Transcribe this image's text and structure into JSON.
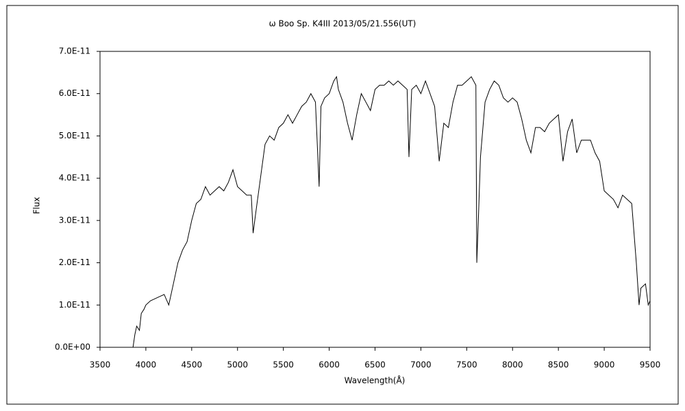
{
  "chart_data": {
    "type": "line",
    "title": "ω  Boo    Sp. K4III    2013/05/21.556(UT)",
    "x_label": "Wavelength(Å)",
    "y_label": "Flux",
    "color": "#000000",
    "xlim": [
      3500,
      9500
    ],
    "xticks": [
      3500,
      4000,
      4500,
      5000,
      5500,
      6000,
      6500,
      7000,
      7500,
      8000,
      8500,
      9000,
      9500
    ],
    "ylim": [
      0,
      7e-11
    ],
    "yticks": [
      {
        "value": 0,
        "label": "0.0E+00"
      },
      {
        "value": 1e-11,
        "label": "1.0E-11"
      },
      {
        "value": 2e-11,
        "label": "2.0E-11"
      },
      {
        "value": 3e-11,
        "label": "3.0E-11"
      },
      {
        "value": 4e-11,
        "label": "4.0E-11"
      },
      {
        "value": 5e-11,
        "label": "5.0E-11"
      },
      {
        "value": 6e-11,
        "label": "6.0E-11"
      },
      {
        "value": 7e-11,
        "label": "7.0E-11"
      }
    ],
    "x": [
      3860,
      3880,
      3900,
      3930,
      3950,
      3980,
      4000,
      4050,
      4100,
      4150,
      4200,
      4250,
      4300,
      4350,
      4400,
      4450,
      4500,
      4550,
      4600,
      4650,
      4700,
      4750,
      4800,
      4850,
      4900,
      4950,
      5000,
      5050,
      5100,
      5150,
      5170,
      5200,
      5250,
      5300,
      5350,
      5400,
      5450,
      5500,
      5550,
      5600,
      5650,
      5700,
      5750,
      5800,
      5850,
      5890,
      5910,
      5950,
      6000,
      6050,
      6080,
      6100,
      6150,
      6200,
      6250,
      6300,
      6350,
      6400,
      6450,
      6500,
      6550,
      6600,
      6650,
      6700,
      6750,
      6800,
      6850,
      6870,
      6900,
      6950,
      7000,
      7050,
      7100,
      7150,
      7200,
      7250,
      7300,
      7350,
      7400,
      7450,
      7500,
      7550,
      7600,
      7610,
      7630,
      7650,
      7700,
      7750,
      7800,
      7850,
      7900,
      7950,
      8000,
      8050,
      8100,
      8150,
      8200,
      8250,
      8300,
      8350,
      8400,
      8450,
      8500,
      8550,
      8600,
      8650,
      8700,
      8750,
      8800,
      8850,
      8900,
      8950,
      9000,
      9050,
      9100,
      9150,
      9200,
      9250,
      9300,
      9350,
      9380,
      9400,
      9450,
      9480,
      9500
    ],
    "values": [
      0,
      3e-12,
      5e-12,
      4e-12,
      8e-12,
      9e-12,
      1e-11,
      1.1e-11,
      1.15e-11,
      1.2e-11,
      1.25e-11,
      1e-11,
      1.5e-11,
      2e-11,
      2.3e-11,
      2.5e-11,
      3e-11,
      3.4e-11,
      3.5e-11,
      3.8e-11,
      3.6e-11,
      3.7e-11,
      3.8e-11,
      3.7e-11,
      3.9e-11,
      4.2e-11,
      3.8e-11,
      3.7e-11,
      3.6e-11,
      3.6e-11,
      2.7e-11,
      3.2e-11,
      4e-11,
      4.8e-11,
      5e-11,
      4.9e-11,
      5.2e-11,
      5.3e-11,
      5.5e-11,
      5.3e-11,
      5.5e-11,
      5.7e-11,
      5.8e-11,
      6e-11,
      5.8e-11,
      3.8e-11,
      5.7e-11,
      5.9e-11,
      6e-11,
      6.3e-11,
      6.4e-11,
      6.1e-11,
      5.8e-11,
      5.3e-11,
      4.9e-11,
      5.5e-11,
      6e-11,
      5.8e-11,
      5.6e-11,
      6.1e-11,
      6.2e-11,
      6.2e-11,
      6.3e-11,
      6.2e-11,
      6.3e-11,
      6.2e-11,
      6.1e-11,
      4.5e-11,
      6.1e-11,
      6.2e-11,
      6e-11,
      6.3e-11,
      6e-11,
      5.7e-11,
      4.4e-11,
      5.3e-11,
      5.2e-11,
      5.8e-11,
      6.2e-11,
      6.2e-11,
      6.3e-11,
      6.4e-11,
      6.2e-11,
      2e-11,
      3.2e-11,
      4.5e-11,
      5.8e-11,
      6.1e-11,
      6.3e-11,
      6.2e-11,
      5.9e-11,
      5.8e-11,
      5.9e-11,
      5.8e-11,
      5.4e-11,
      4.9e-11,
      4.6e-11,
      5.2e-11,
      5.2e-11,
      5.1e-11,
      5.3e-11,
      5.4e-11,
      5.5e-11,
      4.4e-11,
      5.1e-11,
      5.4e-11,
      4.6e-11,
      4.9e-11,
      4.9e-11,
      4.9e-11,
      4.6e-11,
      4.4e-11,
      3.7e-11,
      3.6e-11,
      3.5e-11,
      3.3e-11,
      3.6e-11,
      3.5e-11,
      3.4e-11,
      2e-11,
      1e-11,
      1.4e-11,
      1.5e-11,
      1e-11,
      1.1e-11
    ]
  }
}
